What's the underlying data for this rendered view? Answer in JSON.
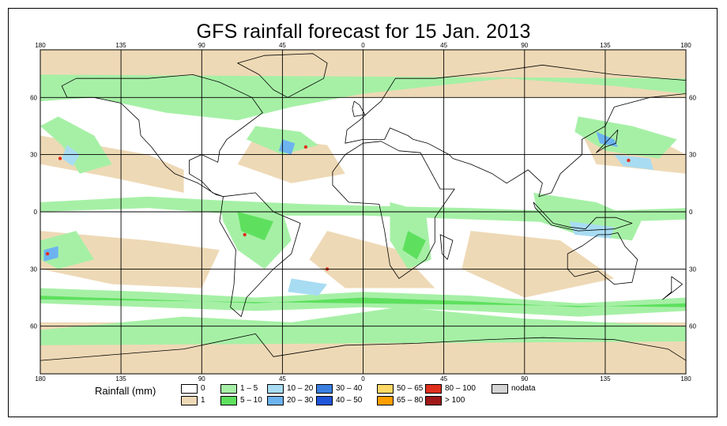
{
  "title": "GFS rainfall forecast for 15 Jan. 2013",
  "map": {
    "longitude_ticks": [
      "180",
      "135",
      "90",
      "45",
      "0",
      "45",
      "90",
      "135",
      "180"
    ],
    "latitude_ticks_left": [
      "60",
      "30",
      "0",
      "30",
      "60"
    ],
    "latitude_ticks_right": [
      "60",
      "30",
      "0",
      "30",
      "60"
    ],
    "projection": "equirectangular",
    "land_outline_color": "#000000",
    "grid_color": "#000000"
  },
  "legend": {
    "title": "Rainfall (mm)",
    "items": [
      {
        "label": "0",
        "color": "#ffffff"
      },
      {
        "label": "1",
        "color": "#eed9b6"
      },
      {
        "label": "1 – 5",
        "color": "#a6f0a6"
      },
      {
        "label": "5 – 10",
        "color": "#5ee05e"
      },
      {
        "label": "10 – 20",
        "color": "#a8dcf2"
      },
      {
        "label": "20 – 30",
        "color": "#6cb3f0"
      },
      {
        "label": "30 – 40",
        "color": "#3a7fe0"
      },
      {
        "label": "40 – 50",
        "color": "#1f55d8"
      },
      {
        "label": "50 – 65",
        "color": "#ffd966"
      },
      {
        "label": "65 – 80",
        "color": "#ff9e00"
      },
      {
        "label": "80 – 100",
        "color": "#e0301e"
      },
      {
        "label": "> 100",
        "color": "#a01818"
      },
      {
        "label": "nodata",
        "color": "#d4d4d4"
      }
    ]
  }
}
